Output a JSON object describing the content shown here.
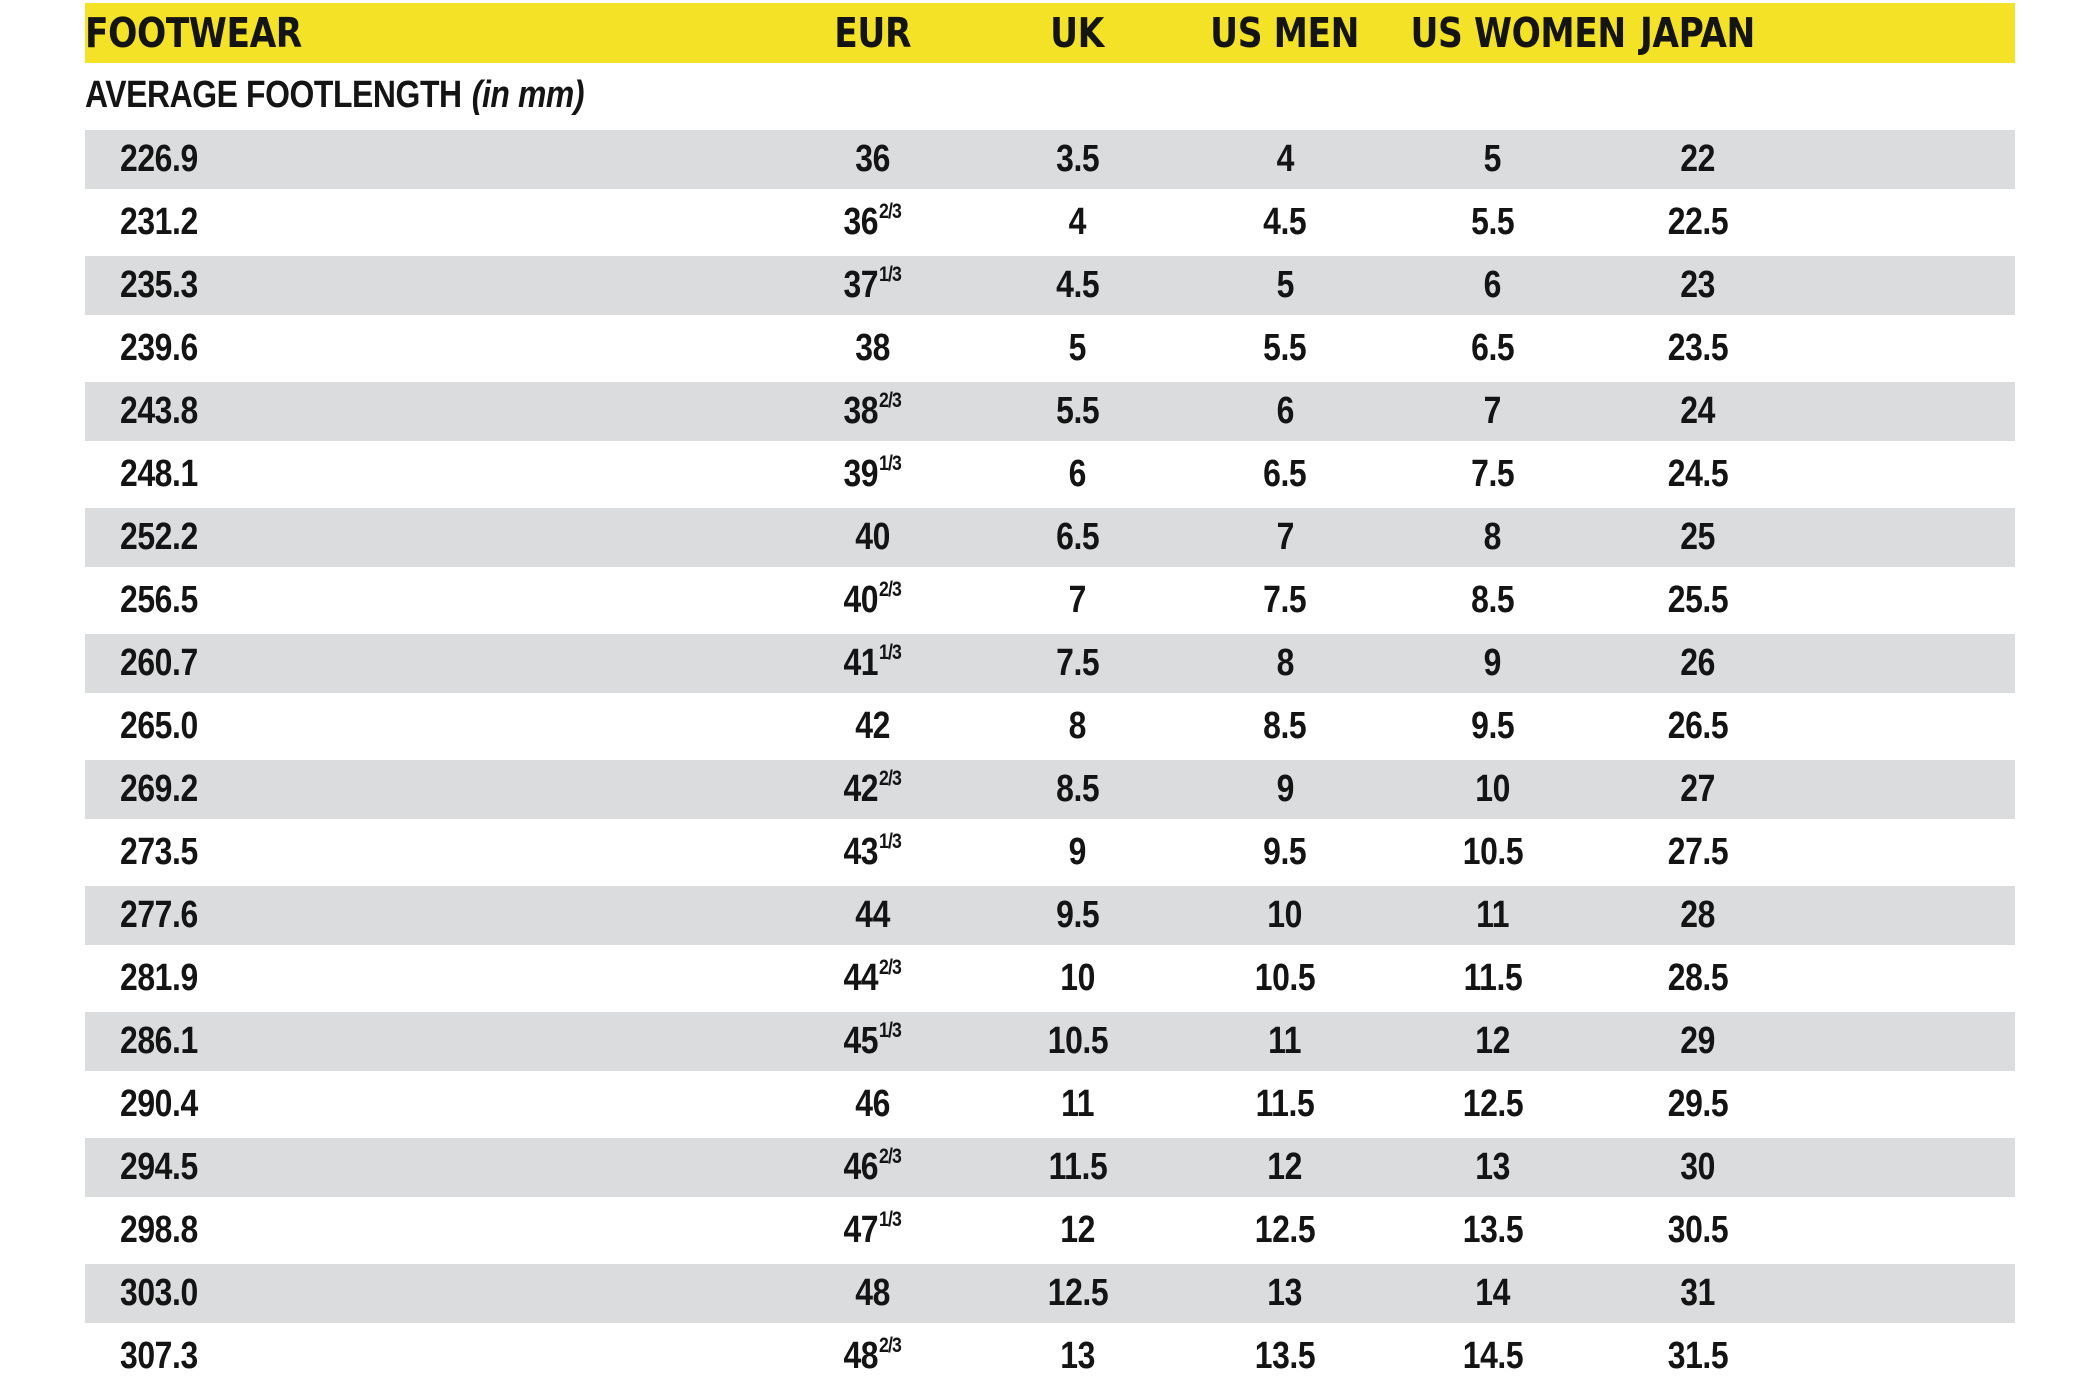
{
  "colors": {
    "header_yellow": "#F4E226",
    "row_gray": "#DBDCDE",
    "text": "#141414"
  },
  "table": {
    "header": {
      "footwear": "FOOTWEAR",
      "eur": "EUR",
      "uk": "UK",
      "us_men": "US MEN",
      "us_women": "US WOMEN",
      "japan": "JAPAN"
    },
    "subheader": {
      "text": "AVERAGE FOOTLENGTH",
      "note": "(in mm)"
    },
    "rows": [
      {
        "mm": "226.9",
        "eur": "36",
        "eur_sup": "",
        "uk": "3.5",
        "us_men": "4",
        "us_women": "5",
        "japan": "22"
      },
      {
        "mm": "231.2",
        "eur": "36",
        "eur_sup": "2/3",
        "uk": "4",
        "us_men": "4.5",
        "us_women": "5.5",
        "japan": "22.5"
      },
      {
        "mm": "235.3",
        "eur": "37",
        "eur_sup": "1/3",
        "uk": "4.5",
        "us_men": "5",
        "us_women": "6",
        "japan": "23"
      },
      {
        "mm": "239.6",
        "eur": "38",
        "eur_sup": "",
        "uk": "5",
        "us_men": "5.5",
        "us_women": "6.5",
        "japan": "23.5"
      },
      {
        "mm": "243.8",
        "eur": "38",
        "eur_sup": "2/3",
        "uk": "5.5",
        "us_men": "6",
        "us_women": "7",
        "japan": "24"
      },
      {
        "mm": "248.1",
        "eur": "39",
        "eur_sup": "1/3",
        "uk": "6",
        "us_men": "6.5",
        "us_women": "7.5",
        "japan": "24.5"
      },
      {
        "mm": "252.2",
        "eur": "40",
        "eur_sup": "",
        "uk": "6.5",
        "us_men": "7",
        "us_women": "8",
        "japan": "25"
      },
      {
        "mm": "256.5",
        "eur": "40",
        "eur_sup": "2/3",
        "uk": "7",
        "us_men": "7.5",
        "us_women": "8.5",
        "japan": "25.5"
      },
      {
        "mm": "260.7",
        "eur": "41",
        "eur_sup": "1/3",
        "uk": "7.5",
        "us_men": "8",
        "us_women": "9",
        "japan": "26"
      },
      {
        "mm": "265.0",
        "eur": "42",
        "eur_sup": "",
        "uk": "8",
        "us_men": "8.5",
        "us_women": "9.5",
        "japan": "26.5"
      },
      {
        "mm": "269.2",
        "eur": "42",
        "eur_sup": "2/3",
        "uk": "8.5",
        "us_men": "9",
        "us_women": "10",
        "japan": "27"
      },
      {
        "mm": "273.5",
        "eur": "43",
        "eur_sup": "1/3",
        "uk": "9",
        "us_men": "9.5",
        "us_women": "10.5",
        "japan": "27.5"
      },
      {
        "mm": "277.6",
        "eur": "44",
        "eur_sup": "",
        "uk": "9.5",
        "us_men": "10",
        "us_women": "11",
        "japan": "28"
      },
      {
        "mm": "281.9",
        "eur": "44",
        "eur_sup": "2/3",
        "uk": "10",
        "us_men": "10.5",
        "us_women": "11.5",
        "japan": "28.5"
      },
      {
        "mm": "286.1",
        "eur": "45",
        "eur_sup": "1/3",
        "uk": "10.5",
        "us_men": "11",
        "us_women": "12",
        "japan": "29"
      },
      {
        "mm": "290.4",
        "eur": "46",
        "eur_sup": "",
        "uk": "11",
        "us_men": "11.5",
        "us_women": "12.5",
        "japan": "29.5"
      },
      {
        "mm": "294.5",
        "eur": "46",
        "eur_sup": "2/3",
        "uk": "11.5",
        "us_men": "12",
        "us_women": "13",
        "japan": "30"
      },
      {
        "mm": "298.8",
        "eur": "47",
        "eur_sup": "1/3",
        "uk": "12",
        "us_men": "12.5",
        "us_women": "13.5",
        "japan": "30.5"
      },
      {
        "mm": "303.0",
        "eur": "48",
        "eur_sup": "",
        "uk": "12.5",
        "us_men": "13",
        "us_women": "14",
        "japan": "31"
      },
      {
        "mm": "307.3",
        "eur": "48",
        "eur_sup": "2/3",
        "uk": "13",
        "us_men": "13.5",
        "us_women": "14.5",
        "japan": "31.5"
      }
    ]
  }
}
